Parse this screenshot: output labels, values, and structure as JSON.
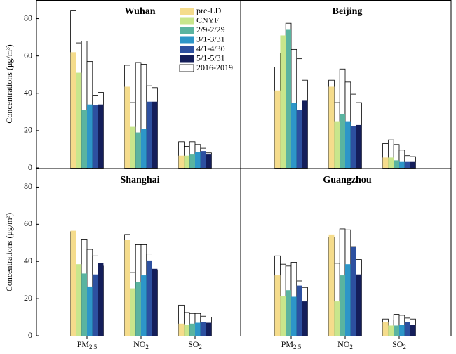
{
  "chart_data": [
    {
      "type": "bar",
      "title": "Wuhan",
      "ylabel": "Concentrations (μg/m³)",
      "ylim": [
        0,
        90
      ],
      "yticks": [
        0,
        20,
        40,
        60,
        80
      ],
      "legend": "upper right",
      "series": [
        {
          "name": "2016-2019",
          "color": "#ffffff",
          "values": [
            [
              84.5,
              67,
              68,
              57,
              39,
              40.5
            ],
            [
              55,
              35,
              56.5,
              55.5,
              44,
              43
            ],
            [
              14,
              11.5,
              14,
              12.5,
              10.5,
              8
            ]
          ]
        },
        {
          "name": "pre-LD",
          "color": "#f5dc8c",
          "values": [
            62,
            43.5,
            6.5
          ]
        },
        {
          "name": "CNYF",
          "color": "#c8e68c",
          "values": [
            51,
            22,
            6.5
          ]
        },
        {
          "name": "2/9-2/29",
          "color": "#5ab4a0",
          "values": [
            31,
            19,
            7.5
          ]
        },
        {
          "name": "3/1-3/31",
          "color": "#2d96c8",
          "values": [
            34,
            21,
            8.5
          ]
        },
        {
          "name": "4/1-4/30",
          "color": "#2d50a0",
          "values": [
            33.5,
            35.5,
            9
          ]
        },
        {
          "name": "5/1-5/31",
          "color": "#141e5a",
          "values": [
            34,
            35.5,
            7.5
          ]
        }
      ]
    },
    {
      "type": "bar",
      "title": "Beijing",
      "ylim": [
        0,
        90
      ],
      "series": [
        {
          "color": "#ffffff",
          "values": [
            [
              54,
              61.5,
              77.5,
              63.5,
              58.5,
              47
            ],
            [
              47,
              35,
              53,
              46,
              39.5,
              35
            ],
            [
              13,
              15,
              12.5,
              9.5,
              6.5,
              6
            ]
          ]
        },
        {
          "color": "#f5dc8c",
          "values": [
            41.5,
            43.5,
            5.5
          ]
        },
        {
          "color": "#c8e68c",
          "values": [
            71,
            25,
            5.5
          ]
        },
        {
          "color": "#5ab4a0",
          "values": [
            74,
            29,
            4
          ]
        },
        {
          "color": "#2d96c8",
          "values": [
            35,
            25,
            3.5
          ]
        },
        {
          "color": "#2d50a0",
          "values": [
            31,
            22.5,
            3.5
          ]
        },
        {
          "color": "#141e5a",
          "values": [
            36,
            23,
            3.5
          ]
        }
      ]
    },
    {
      "type": "bar",
      "title": "Shanghai",
      "ylabel": "Concentrations (μg/m³)",
      "ylim": [
        0,
        90
      ],
      "yticks": [
        0,
        20,
        40,
        60,
        80
      ],
      "categories": [
        "PM2.5",
        "NO2",
        "SO2"
      ],
      "series": [
        {
          "color": "#ffffff",
          "values": [
            [
              56,
              38,
              52,
              46.5,
              43,
              37.5
            ],
            [
              54.5,
              34,
              49,
              49,
              44,
              35
            ],
            [
              16.5,
              12.5,
              12,
              12,
              10.5,
              10
            ]
          ]
        },
        {
          "color": "#f5dc8c",
          "values": [
            56.5,
            51.5,
            6.5
          ]
        },
        {
          "color": "#c8e68c",
          "values": [
            38.5,
            25.5,
            6
          ]
        },
        {
          "color": "#5ab4a0",
          "values": [
            33.5,
            29,
            6.5
          ]
        },
        {
          "color": "#2d96c8",
          "values": [
            26.5,
            32.5,
            7
          ]
        },
        {
          "color": "#2d50a0",
          "values": [
            33,
            40.5,
            7.5
          ]
        },
        {
          "color": "#141e5a",
          "values": [
            39,
            36,
            7
          ]
        }
      ]
    },
    {
      "type": "bar",
      "title": "Guangzhou",
      "ylim": [
        0,
        90
      ],
      "categories": [
        "PM2.5",
        "NO2",
        "SO2"
      ],
      "series": [
        {
          "color": "#ffffff",
          "values": [
            [
              43,
              38.5,
              37.5,
              39.5,
              29.5,
              26
            ],
            [
              53,
              39,
              57.5,
              57,
              48,
              41
            ],
            [
              9,
              8.5,
              11.5,
              11,
              9.5,
              9
            ]
          ]
        },
        {
          "color": "#f5dc8c",
          "values": [
            32.5,
            54.5,
            7.5
          ]
        },
        {
          "color": "#c8e68c",
          "values": [
            21.5,
            18.5,
            5.5
          ]
        },
        {
          "color": "#5ab4a0",
          "values": [
            24.5,
            32.5,
            5.5
          ]
        },
        {
          "color": "#2d96c8",
          "values": [
            21,
            38.5,
            6
          ]
        },
        {
          "color": "#2d50a0",
          "values": [
            27,
            48,
            7.5
          ]
        },
        {
          "color": "#141e5a",
          "values": [
            18.5,
            33,
            6
          ]
        }
      ]
    }
  ]
}
